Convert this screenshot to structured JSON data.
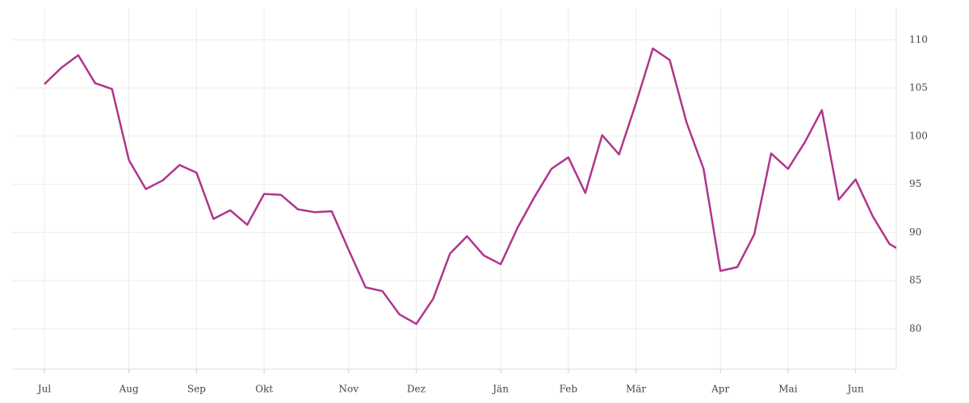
{
  "chart_data": {
    "type": "line",
    "categories": [
      "Jul",
      null,
      null,
      null,
      null,
      "Aug",
      null,
      null,
      null,
      "Sep",
      null,
      null,
      null,
      "Okt",
      null,
      null,
      null,
      null,
      "Nov",
      null,
      null,
      null,
      "Dez",
      null,
      null,
      null,
      null,
      "Jän",
      null,
      null,
      null,
      "Feb",
      null,
      null,
      null,
      "Mär",
      null,
      null,
      null,
      null,
      "Apr",
      null,
      null,
      null,
      "Mai",
      null,
      null,
      null,
      "Jun",
      null,
      null,
      null
    ],
    "series": [
      {
        "color": "#b0358c",
        "values": [
          105.4,
          107.1,
          108.4,
          105.5,
          104.9,
          97.5,
          94.5,
          95.4,
          97.0,
          96.2,
          91.4,
          92.3,
          90.8,
          94.0,
          93.9,
          92.4,
          92.1,
          92.2,
          88.2,
          84.3,
          83.9,
          81.5,
          80.5,
          83.1,
          87.8,
          89.6,
          87.6,
          86.7,
          90.5,
          93.7,
          96.6,
          97.8,
          94.1,
          100.1,
          98.1,
          103.4,
          109.1,
          107.9,
          101.4,
          96.6,
          86.0,
          86.4,
          89.8,
          98.2,
          96.6,
          99.4,
          102.7,
          93.4,
          95.5,
          91.7,
          88.8,
          87.8
        ]
      }
    ],
    "ylim": [
      75.8,
      113.3
    ],
    "yticks": [
      80,
      85,
      90,
      95,
      100,
      105,
      110
    ],
    "grid": true
  }
}
